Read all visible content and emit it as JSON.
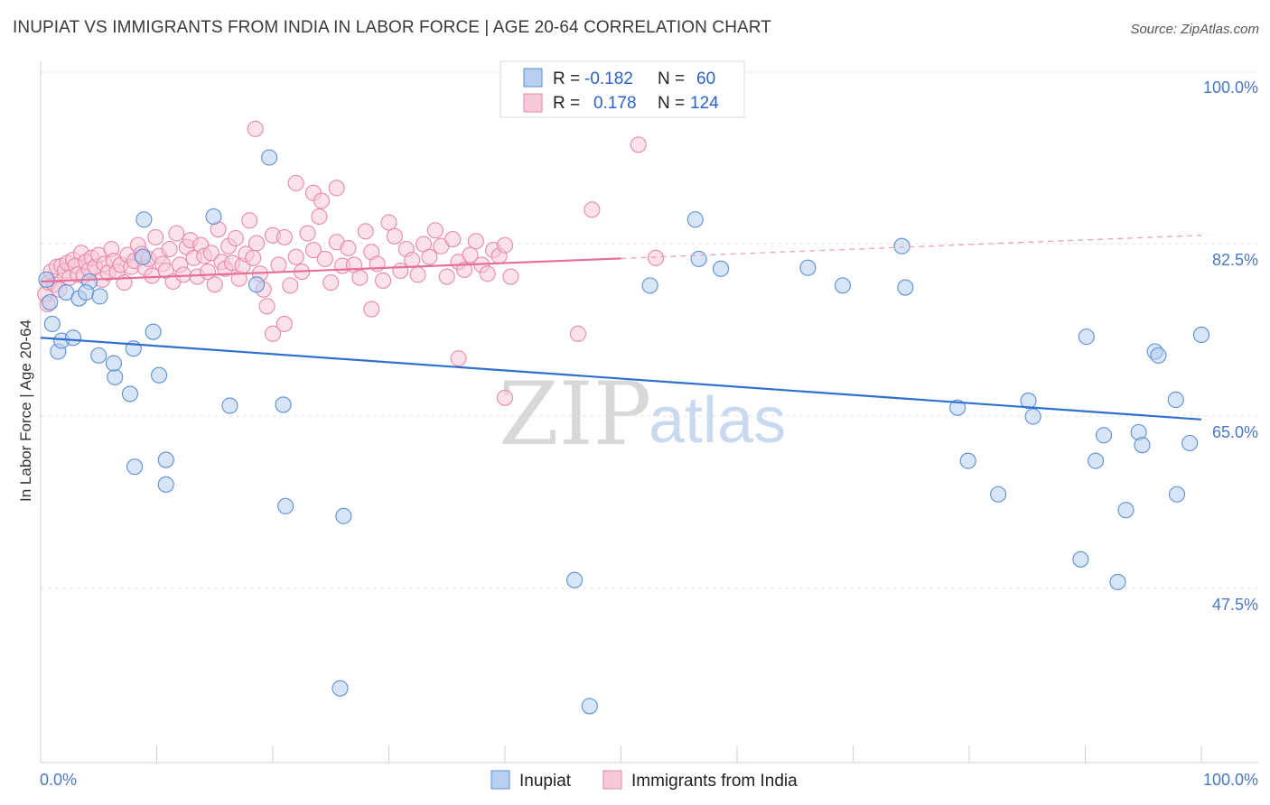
{
  "title": "INUPIAT VS IMMIGRANTS FROM INDIA IN LABOR FORCE | AGE 20-64 CORRELATION CHART",
  "source": "Source: ZipAtlas.com",
  "watermark": {
    "zip": "ZIP",
    "atlas": "atlas"
  },
  "chart_data": {
    "type": "scatter",
    "xlabel": "",
    "ylabel": "In Labor Force | Age 20-64",
    "xlim": [
      0,
      100
    ],
    "ylim": [
      29,
      103
    ],
    "x_tick_labels": [
      "0.0%",
      "100.0%"
    ],
    "y_ticks": [
      {
        "value": 100.0,
        "label": "100.0%"
      },
      {
        "value": 82.5,
        "label": "82.5%"
      },
      {
        "value": 65.0,
        "label": "65.0%"
      },
      {
        "value": 47.5,
        "label": "47.5%"
      }
    ],
    "grid": "horizontal dashed",
    "legend": {
      "placement": "top-center",
      "rows": [
        {
          "r_label": "R =",
          "r_value": "-0.182",
          "n_label": "N =",
          "n_value": "60"
        },
        {
          "r_label": "R =",
          "r_value": "0.178",
          "n_label": "N =",
          "n_value": "124"
        }
      ]
    },
    "series": [
      {
        "name": "Inupiat",
        "color": "#5b8fd6",
        "fill": "#b8cff0",
        "trend": {
          "x": [
            0,
            100
          ],
          "y": [
            74.6,
            66.3
          ],
          "dashed_from": null
        },
        "points": [
          [
            0.5,
            80.5
          ],
          [
            0.8,
            78.2
          ],
          [
            1.0,
            76.0
          ],
          [
            1.5,
            73.2
          ],
          [
            1.8,
            74.3
          ],
          [
            2.2,
            79.2
          ],
          [
            2.8,
            74.6
          ],
          [
            3.3,
            78.6
          ],
          [
            4.2,
            80.3
          ],
          [
            3.9,
            79.2
          ],
          [
            5.0,
            72.8
          ],
          [
            5.1,
            78.8
          ],
          [
            6.4,
            70.6
          ],
          [
            6.3,
            72.0
          ],
          [
            7.7,
            68.9
          ],
          [
            8.0,
            73.5
          ],
          [
            8.1,
            61.5
          ],
          [
            8.8,
            82.8
          ],
          [
            8.9,
            86.6
          ],
          [
            9.7,
            75.2
          ],
          [
            10.2,
            70.8
          ],
          [
            10.8,
            62.2
          ],
          [
            10.8,
            59.7
          ],
          [
            14.9,
            86.9
          ],
          [
            16.3,
            67.7
          ],
          [
            18.6,
            80.0
          ],
          [
            19.7,
            92.9
          ],
          [
            21.1,
            57.5
          ],
          [
            26.1,
            56.5
          ],
          [
            20.9,
            67.8
          ],
          [
            25.8,
            39.0
          ],
          [
            46.0,
            50.0
          ],
          [
            47.3,
            37.2
          ],
          [
            52.5,
            79.9
          ],
          [
            56.4,
            86.6
          ],
          [
            56.7,
            82.6
          ],
          [
            58.6,
            81.6
          ],
          [
            66.1,
            81.7
          ],
          [
            69.1,
            79.9
          ],
          [
            74.2,
            83.9
          ],
          [
            74.5,
            79.7
          ],
          [
            79.0,
            67.5
          ],
          [
            79.9,
            62.1
          ],
          [
            82.5,
            58.7
          ],
          [
            85.1,
            68.2
          ],
          [
            85.5,
            66.6
          ],
          [
            90.1,
            74.7
          ],
          [
            89.6,
            52.1
          ],
          [
            90.9,
            62.1
          ],
          [
            91.6,
            64.7
          ],
          [
            92.8,
            49.8
          ],
          [
            93.5,
            57.1
          ],
          [
            94.6,
            65.0
          ],
          [
            94.9,
            63.7
          ],
          [
            96.0,
            73.2
          ],
          [
            96.3,
            72.8
          ],
          [
            97.8,
            68.3
          ],
          [
            97.9,
            58.7
          ],
          [
            99.0,
            63.9
          ],
          [
            100.0,
            74.9
          ]
        ]
      },
      {
        "name": "Immigrants from India",
        "color": "#e68aa8",
        "fill": "#f7c9d7",
        "trend": {
          "x": [
            0,
            100
          ],
          "y": [
            80.3,
            85.0
          ],
          "dashed_from": 50
        },
        "points": [
          [
            0.4,
            79.0
          ],
          [
            0.6,
            78.0
          ],
          [
            0.7,
            80.2
          ],
          [
            0.9,
            81.3
          ],
          [
            1.2,
            80.0
          ],
          [
            1.4,
            81.8
          ],
          [
            1.6,
            79.5
          ],
          [
            1.8,
            81.9
          ],
          [
            2.1,
            81.4
          ],
          [
            2.3,
            82.2
          ],
          [
            2.5,
            80.7
          ],
          [
            2.8,
            82.5
          ],
          [
            3.0,
            81.9
          ],
          [
            3.2,
            81.0
          ],
          [
            3.5,
            83.2
          ],
          [
            3.7,
            80.9
          ],
          [
            3.9,
            82.3
          ],
          [
            4.2,
            81.5
          ],
          [
            4.4,
            82.7
          ],
          [
            4.7,
            81.8
          ],
          [
            5.0,
            83.0
          ],
          [
            5.3,
            80.5
          ],
          [
            5.5,
            82.1
          ],
          [
            5.8,
            81.2
          ],
          [
            6.1,
            83.6
          ],
          [
            6.3,
            82.4
          ],
          [
            6.6,
            81.3
          ],
          [
            6.9,
            82.0
          ],
          [
            7.2,
            80.2
          ],
          [
            7.5,
            83.0
          ],
          [
            7.8,
            81.8
          ],
          [
            8.1,
            82.4
          ],
          [
            8.4,
            84.0
          ],
          [
            8.7,
            83.1
          ],
          [
            9.0,
            81.7
          ],
          [
            9.3,
            82.6
          ],
          [
            9.6,
            80.9
          ],
          [
            9.9,
            84.8
          ],
          [
            10.2,
            82.9
          ],
          [
            10.5,
            82.1
          ],
          [
            10.8,
            81.4
          ],
          [
            11.1,
            83.6
          ],
          [
            11.4,
            80.3
          ],
          [
            11.7,
            85.2
          ],
          [
            12.0,
            82.0
          ],
          [
            12.3,
            81.0
          ],
          [
            12.6,
            83.8
          ],
          [
            12.9,
            84.5
          ],
          [
            13.2,
            82.7
          ],
          [
            13.5,
            80.8
          ],
          [
            13.8,
            84.0
          ],
          [
            14.1,
            82.9
          ],
          [
            14.4,
            81.3
          ],
          [
            14.7,
            83.2
          ],
          [
            15.0,
            80.0
          ],
          [
            15.3,
            85.6
          ],
          [
            15.6,
            82.3
          ],
          [
            15.9,
            81.6
          ],
          [
            16.2,
            83.9
          ],
          [
            16.5,
            82.2
          ],
          [
            16.8,
            84.7
          ],
          [
            17.1,
            80.6
          ],
          [
            17.4,
            81.9
          ],
          [
            17.7,
            83.1
          ],
          [
            18.0,
            86.5
          ],
          [
            18.3,
            82.7
          ],
          [
            18.6,
            84.2
          ],
          [
            18.9,
            81.1
          ],
          [
            19.2,
            79.5
          ],
          [
            19.5,
            77.8
          ],
          [
            20.0,
            85.0
          ],
          [
            20.5,
            82.0
          ],
          [
            21.0,
            84.8
          ],
          [
            21.5,
            79.9
          ],
          [
            22.0,
            82.8
          ],
          [
            22.5,
            81.3
          ],
          [
            23.0,
            85.2
          ],
          [
            23.5,
            83.5
          ],
          [
            24.0,
            86.9
          ],
          [
            24.5,
            82.6
          ],
          [
            25.0,
            80.2
          ],
          [
            25.5,
            84.3
          ],
          [
            26.0,
            81.9
          ],
          [
            26.5,
            83.7
          ],
          [
            27.0,
            82.0
          ],
          [
            27.5,
            80.7
          ],
          [
            28.0,
            85.4
          ],
          [
            28.5,
            83.3
          ],
          [
            29.0,
            82.1
          ],
          [
            29.5,
            80.4
          ],
          [
            30.0,
            86.3
          ],
          [
            30.5,
            84.9
          ],
          [
            31.0,
            81.4
          ],
          [
            31.5,
            83.6
          ],
          [
            32.0,
            82.5
          ],
          [
            32.5,
            81.0
          ],
          [
            33.0,
            84.1
          ],
          [
            33.5,
            82.8
          ],
          [
            34.0,
            85.5
          ],
          [
            34.5,
            83.9
          ],
          [
            35.0,
            80.8
          ],
          [
            35.5,
            84.6
          ],
          [
            36.0,
            82.3
          ],
          [
            36.5,
            81.5
          ],
          [
            37.0,
            83.0
          ],
          [
            37.5,
            84.4
          ],
          [
            38.0,
            82.0
          ],
          [
            38.5,
            81.1
          ],
          [
            39.0,
            83.5
          ],
          [
            39.5,
            82.9
          ],
          [
            40.0,
            84.0
          ],
          [
            18.5,
            95.8
          ],
          [
            22.0,
            90.3
          ],
          [
            23.5,
            89.3
          ],
          [
            24.2,
            88.5
          ],
          [
            20.0,
            75.0
          ],
          [
            21.0,
            76.0
          ],
          [
            25.5,
            89.8
          ],
          [
            28.5,
            77.5
          ],
          [
            36.0,
            72.5
          ],
          [
            40.5,
            80.8
          ],
          [
            46.3,
            75.0
          ],
          [
            47.5,
            87.6
          ],
          [
            51.5,
            94.2
          ],
          [
            53.0,
            82.7
          ],
          [
            40.0,
            68.5
          ]
        ]
      }
    ]
  }
}
